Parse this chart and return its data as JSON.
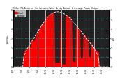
{
  "title": "Solar PV/Inverter Performance West Array Actual & Average Power Output",
  "ylabel_left": "kW/kWh",
  "ylabel_right": "kW",
  "bg_color": "#ffffff",
  "plot_bg_color": "#222222",
  "fill_color": "#ff0000",
  "grid_color": "#555555",
  "hgrid_color": "#00cccc",
  "vgrid_color": "#ffffff",
  "ylim": [
    0,
    6.0
  ],
  "xlim": [
    0,
    143
  ],
  "n_points": 144,
  "legend_actual": "Actual",
  "legend_avg": "Average"
}
